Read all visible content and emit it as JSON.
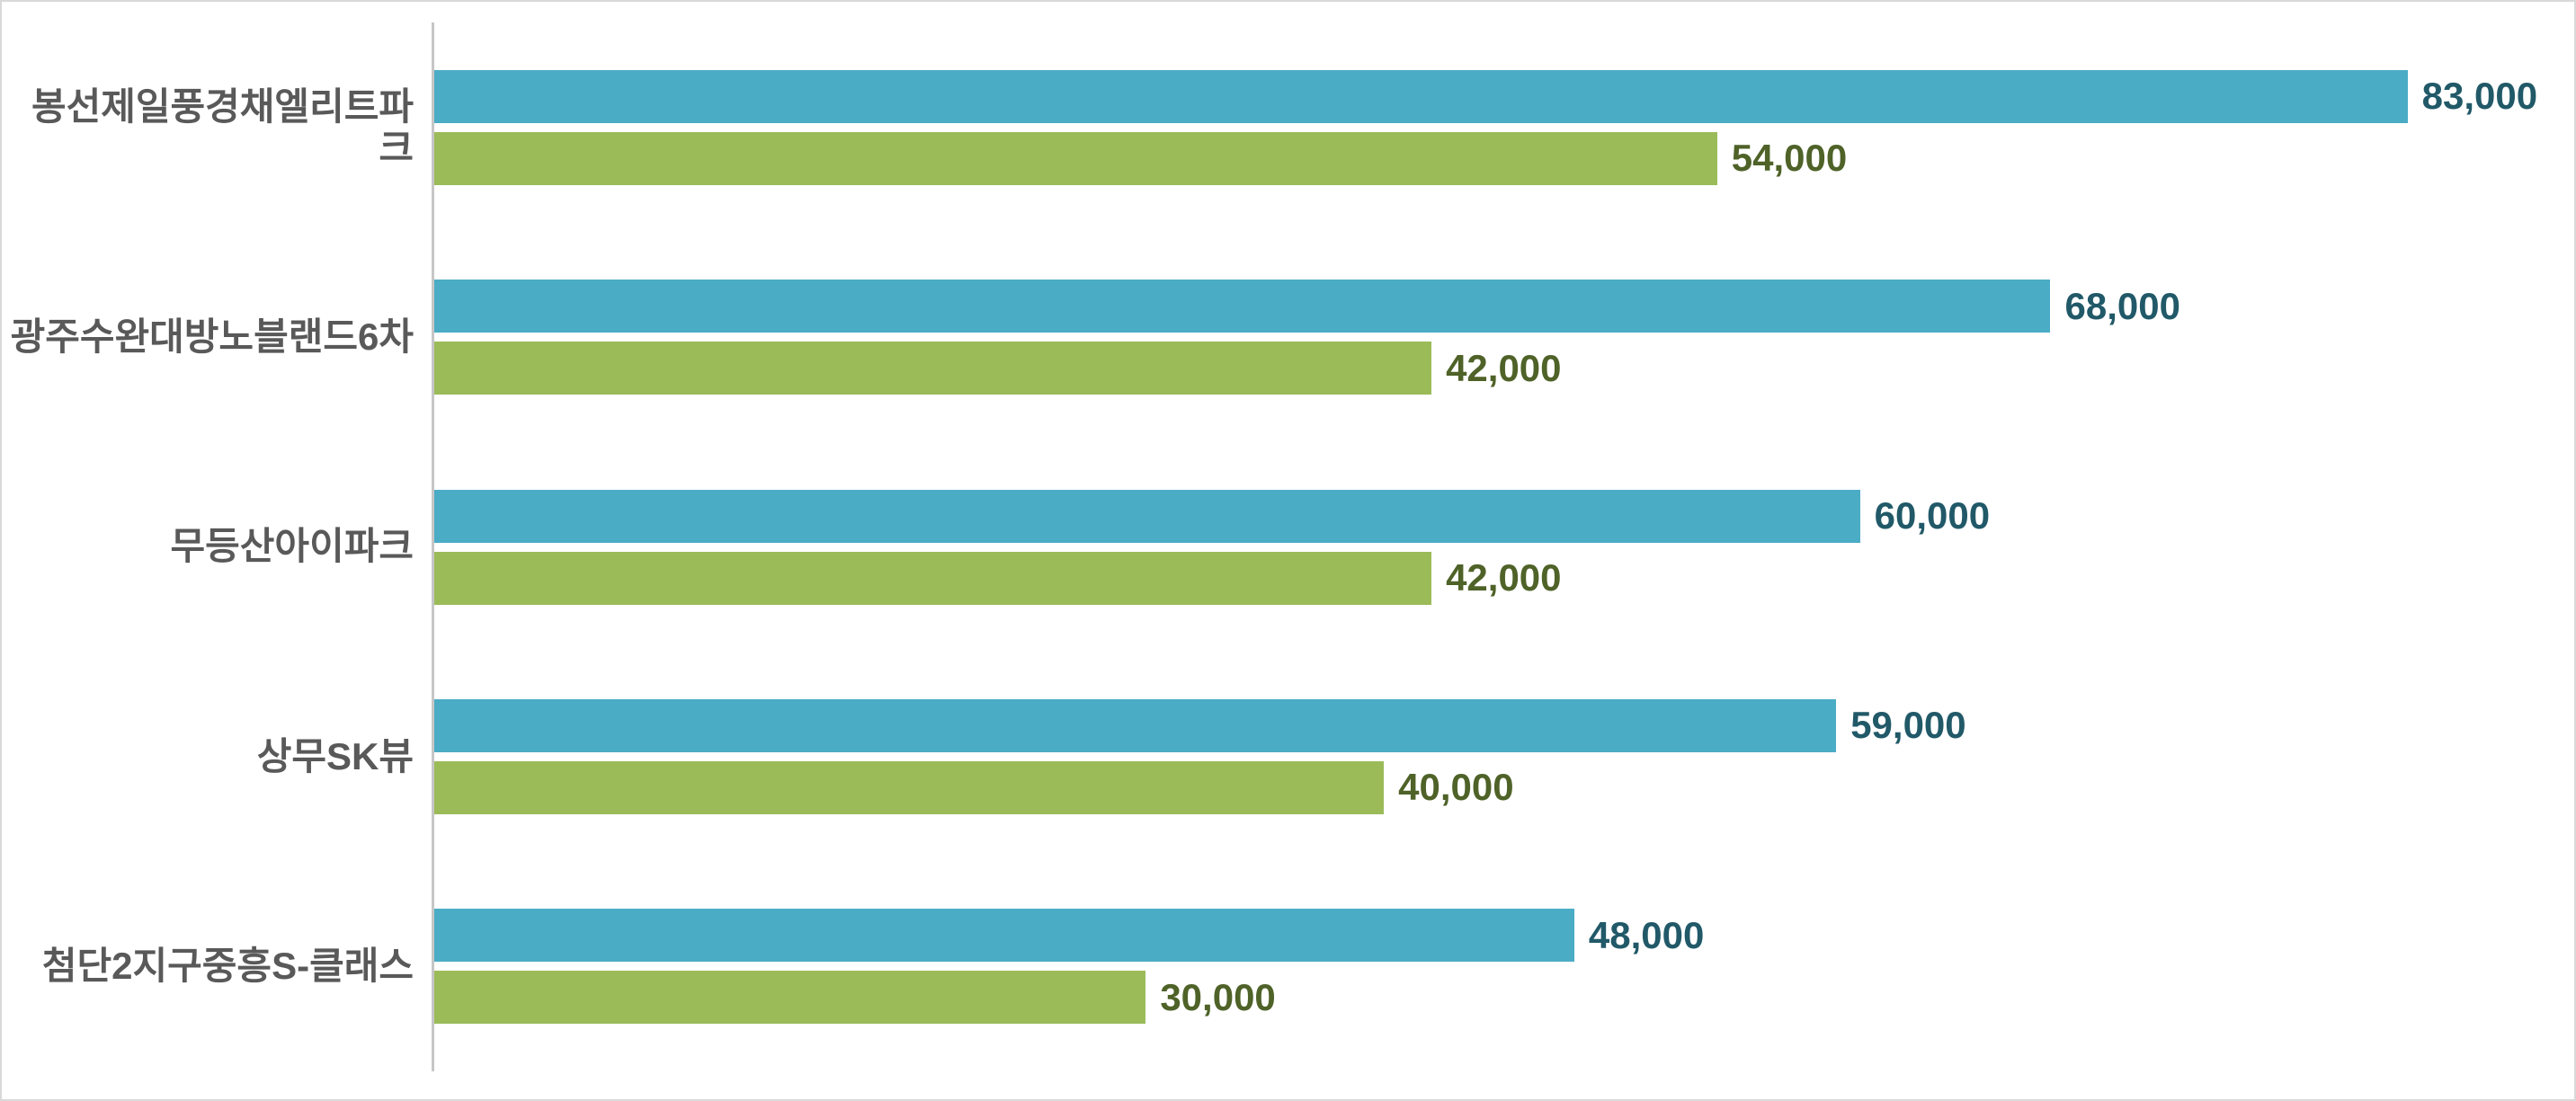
{
  "chart_data": {
    "type": "bar",
    "orientation": "horizontal",
    "title": "",
    "xlabel": "",
    "ylabel": "",
    "xlim": [
      0,
      90000
    ],
    "grid": false,
    "legend": false,
    "categories": [
      "봉선제일풍경채엘리트파크",
      "광주수완대방노블랜드6차",
      "무등산아이파크",
      "상무SK뷰",
      "첨단2지구중흥S-클래스"
    ],
    "series": [
      {
        "name": "series-1-teal",
        "bar_color": "#4BACC6",
        "label_color": "#215968",
        "values": [
          83000,
          68000,
          60000,
          59000,
          48000
        ],
        "value_labels": [
          "83,000",
          "68,000",
          "60,000",
          "59,000",
          "48,000"
        ]
      },
      {
        "name": "series-2-green",
        "bar_color": "#9BBB59",
        "label_color": "#4F6228",
        "values": [
          54000,
          42000,
          42000,
          40000,
          30000
        ],
        "value_labels": [
          "54,000",
          "42,000",
          "42,000",
          "40,000",
          "30,000"
        ]
      }
    ]
  },
  "style": {
    "category_label_color": "#595959",
    "axis_line_color": "#C6C6C6",
    "frame_border_color": "#D9D9D9",
    "background_color": "#FFFFFF"
  }
}
